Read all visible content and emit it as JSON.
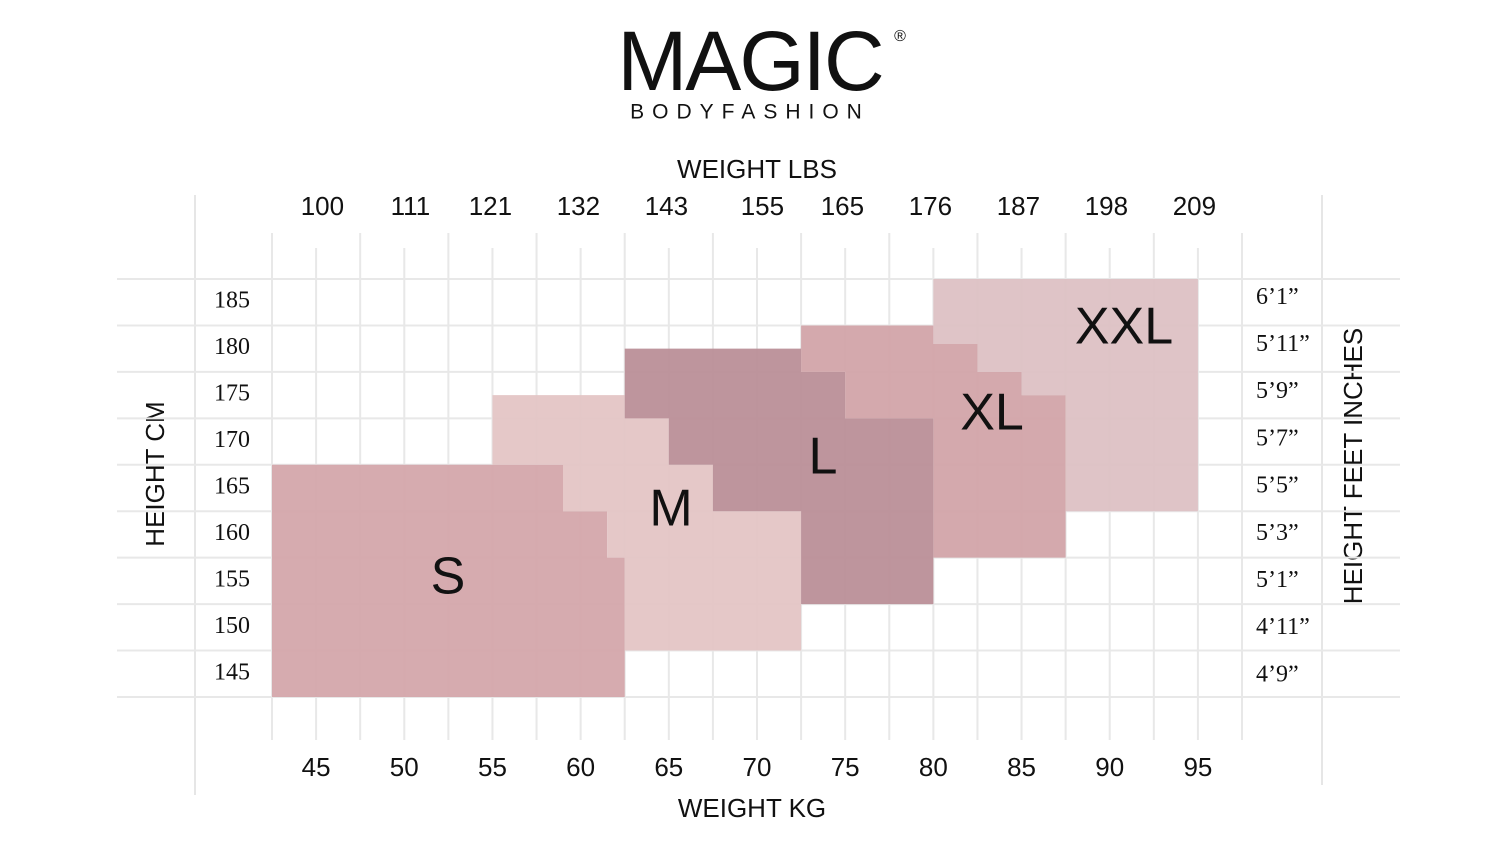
{
  "logo": {
    "name": "MAGIC",
    "mark": "®",
    "tagline": "BODYFASHION"
  },
  "chart_data": {
    "type": "region",
    "x_title": "WEIGHT KG",
    "x2_title": "WEIGHT LBS",
    "y_title": "HEIGHT CM",
    "y2_title": "HEIGHT FEET INCHES",
    "xlim": [
      42.5,
      97.5
    ],
    "ylim": [
      142.5,
      187.5
    ],
    "xticks": [
      45,
      50,
      55,
      60,
      65,
      70,
      75,
      80,
      85,
      90,
      95
    ],
    "x2ticks": [
      100,
      111,
      121,
      132,
      143,
      155,
      165,
      176,
      187,
      198,
      209
    ],
    "yticks": [
      145,
      150,
      155,
      160,
      165,
      170,
      175,
      180,
      185
    ],
    "y2ticks": [
      {
        "value": 57,
        "label": "4’9”"
      },
      {
        "value": 59,
        "label": "4’11”"
      },
      {
        "value": 61,
        "label": "5’1”"
      },
      {
        "value": 63,
        "label": "5’3”"
      },
      {
        "value": 65,
        "label": "5’5”"
      },
      {
        "value": 67,
        "label": "5’7”"
      },
      {
        "value": 69,
        "label": "5’9”"
      },
      {
        "value": 71,
        "label": "5’11”"
      },
      {
        "value": 73,
        "label": "6’1”"
      }
    ],
    "grid": true,
    "series": [
      {
        "name": "S",
        "color": "#d3a4a8",
        "points": [
          [
            42.5,
            142.5
          ],
          [
            62.5,
            142.5
          ],
          [
            62.5,
            157.5
          ],
          [
            61.5,
            157.5
          ],
          [
            61.5,
            162.5
          ],
          [
            59,
            162.5
          ],
          [
            59,
            167.5
          ],
          [
            42.5,
            167.5
          ]
        ]
      },
      {
        "name": "M",
        "color": "#e3c3c3",
        "points": [
          [
            55,
            175
          ],
          [
            62.5,
            175
          ],
          [
            62.5,
            172.5
          ],
          [
            65,
            172.5
          ],
          [
            65,
            167.5
          ],
          [
            67.5,
            167.5
          ],
          [
            67.5,
            162.5
          ],
          [
            72.5,
            162.5
          ],
          [
            72.5,
            147.5
          ],
          [
            62.5,
            147.5
          ],
          [
            62.5,
            157.5
          ],
          [
            61.5,
            157.5
          ],
          [
            61.5,
            162.5
          ],
          [
            59,
            162.5
          ],
          [
            59,
            167.5
          ],
          [
            55,
            167.5
          ]
        ]
      },
      {
        "name": "L",
        "color": "#b98c95",
        "points": [
          [
            62.5,
            180
          ],
          [
            72.5,
            180
          ],
          [
            72.5,
            177.5
          ],
          [
            75,
            177.5
          ],
          [
            75,
            172.5
          ],
          [
            80,
            172.5
          ],
          [
            80,
            152.5
          ],
          [
            72.5,
            152.5
          ],
          [
            72.5,
            162.5
          ],
          [
            67.5,
            162.5
          ],
          [
            67.5,
            167.5
          ],
          [
            65,
            167.5
          ],
          [
            65,
            172.5
          ],
          [
            62.5,
            172.5
          ]
        ]
      },
      {
        "name": "XL",
        "color": "#d0a2a6",
        "points": [
          [
            72.5,
            182.5
          ],
          [
            80,
            182.5
          ],
          [
            80,
            180.5
          ],
          [
            82.5,
            180.5
          ],
          [
            82.5,
            177.5
          ],
          [
            85,
            177.5
          ],
          [
            85,
            175
          ],
          [
            87.5,
            175
          ],
          [
            87.5,
            157.5
          ],
          [
            80,
            157.5
          ],
          [
            80,
            172.5
          ],
          [
            75,
            172.5
          ],
          [
            75,
            177.5
          ],
          [
            72.5,
            177.5
          ]
        ]
      },
      {
        "name": "XXL",
        "color": "#dcbfc2",
        "points": [
          [
            80,
            187.5
          ],
          [
            95,
            187.5
          ],
          [
            95,
            162.5
          ],
          [
            87.5,
            162.5
          ],
          [
            87.5,
            175
          ],
          [
            85,
            175
          ],
          [
            85,
            177.5
          ],
          [
            82.5,
            177.5
          ],
          [
            82.5,
            180.5
          ],
          [
            80,
            180.5
          ]
        ]
      }
    ]
  }
}
